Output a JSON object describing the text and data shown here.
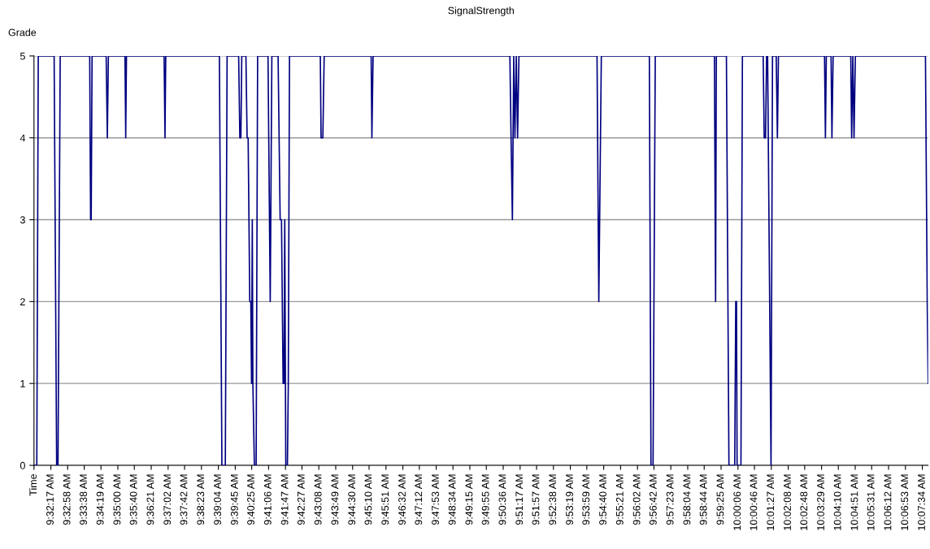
{
  "chart_data": {
    "type": "line",
    "title": "SignalStrength",
    "ylabel": "Grade",
    "x": [
      9.5267,
      9.5286,
      9.5296,
      9.5403,
      9.542,
      9.5429,
      9.5444,
      9.5643,
      9.5649,
      9.5653,
      9.5659,
      9.5754,
      9.5762,
      9.5769,
      9.5881,
      9.5886,
      9.5891,
      9.6145,
      9.6151,
      9.6156,
      9.6518,
      9.6535,
      9.6558,
      9.657,
      9.6648,
      9.6656,
      9.6663,
      9.6669,
      9.6697,
      9.6705,
      9.6712,
      9.6723,
      9.673,
      9.6735,
      9.674,
      9.6744,
      9.6754,
      9.6766,
      9.6776,
      9.6846,
      9.6861,
      9.6872,
      9.6914,
      9.6928,
      9.6937,
      9.6948,
      9.6954,
      9.6959,
      9.6966,
      9.6977,
      9.6983,
      9.6991,
      9.7199,
      9.7204,
      9.7216,
      9.7225,
      9.7542,
      9.7547,
      9.7555,
      9.8478,
      9.8486,
      9.8495,
      9.8504,
      9.8512,
      9.8521,
      9.853,
      9.8539,
      9.9066,
      9.9078,
      9.9095,
      9.9419,
      9.943,
      9.9444,
      9.9459,
      9.9858,
      9.9866,
      9.9871,
      9.9939,
      9.9956,
      9.9995,
      10.0002,
      10.0007,
      10.0011,
      10.0037,
      10.0047,
      10.0187,
      10.0194,
      10.0203,
      10.021,
      10.0217,
      10.024,
      10.025,
      10.0275,
      10.0283,
      10.029,
      10.0601,
      10.0607,
      10.0613,
      10.0645,
      10.0651,
      10.0659,
      10.0778,
      10.0784,
      10.0792,
      10.08,
      10.0809,
      10.1282,
      10.1294,
      10.13
    ],
    "series": [
      {
        "color": "#000080",
        "values": [
          0,
          0,
          5,
          5,
          0,
          0,
          5,
          5,
          3,
          3,
          5,
          5,
          4,
          5,
          5,
          4,
          5,
          5,
          4,
          5,
          5,
          0,
          0,
          5,
          5,
          4,
          4,
          5,
          5,
          4,
          4,
          2,
          2,
          1,
          3,
          1,
          0,
          0,
          5,
          5,
          2,
          5,
          5,
          3,
          3,
          1,
          1,
          3,
          0,
          0,
          1,
          5,
          5,
          4,
          4,
          5,
          5,
          4,
          5,
          5,
          4,
          3,
          5,
          4,
          5,
          4,
          5,
          5,
          2,
          5,
          5,
          0,
          0,
          5,
          5,
          2,
          5,
          5,
          0,
          0,
          2,
          2,
          0,
          0,
          5,
          5,
          4,
          4,
          5,
          5,
          0,
          5,
          5,
          4,
          5,
          5,
          4,
          5,
          5,
          4,
          5,
          5,
          4,
          5,
          4,
          5,
          5,
          2,
          1
        ]
      }
    ],
    "xlim": [
      9.5267,
      10.13
    ],
    "xticks": [
      {
        "value": 9.5267,
        "label": "Time"
      },
      {
        "value": 9.5381,
        "label": "9:32:17 AM"
      },
      {
        "value": 9.5494,
        "label": "9:32:58 AM"
      },
      {
        "value": 9.5606,
        "label": "9:33:38 AM"
      },
      {
        "value": 9.5719,
        "label": "9:34:19 AM"
      },
      {
        "value": 9.5833,
        "label": "9:35:00 AM"
      },
      {
        "value": 9.5944,
        "label": "9:35:40 AM"
      },
      {
        "value": 9.6058,
        "label": "9:36:21 AM"
      },
      {
        "value": 9.6172,
        "label": "9:37:02 AM"
      },
      {
        "value": 9.6283,
        "label": "9:37:42 AM"
      },
      {
        "value": 9.6397,
        "label": "9:38:23 AM"
      },
      {
        "value": 9.6511,
        "label": "9:39:04 AM"
      },
      {
        "value": 9.6625,
        "label": "9:39:45 AM"
      },
      {
        "value": 9.6736,
        "label": "9:40:25 AM"
      },
      {
        "value": 9.685,
        "label": "9:41:06 AM"
      },
      {
        "value": 9.6964,
        "label": "9:41:47 AM"
      },
      {
        "value": 9.7075,
        "label": "9:42:27 AM"
      },
      {
        "value": 9.7189,
        "label": "9:43:08 AM"
      },
      {
        "value": 9.7303,
        "label": "9:43:49 AM"
      },
      {
        "value": 9.7417,
        "label": "9:44:30 AM"
      },
      {
        "value": 9.7528,
        "label": "9:45:10 AM"
      },
      {
        "value": 9.7642,
        "label": "9:45:51 AM"
      },
      {
        "value": 9.7756,
        "label": "9:46:32 AM"
      },
      {
        "value": 9.7867,
        "label": "9:47:12 AM"
      },
      {
        "value": 9.7981,
        "label": "9:47:53 AM"
      },
      {
        "value": 9.8094,
        "label": "9:48:34 AM"
      },
      {
        "value": 9.8208,
        "label": "9:49:15 AM"
      },
      {
        "value": 9.8319,
        "label": "9:49:55 AM"
      },
      {
        "value": 9.8433,
        "label": "9:50:36 AM"
      },
      {
        "value": 9.8547,
        "label": "9:51:17 AM"
      },
      {
        "value": 9.8658,
        "label": "9:51:57 AM"
      },
      {
        "value": 9.8772,
        "label": "9:52:38 AM"
      },
      {
        "value": 9.8886,
        "label": "9:53:19 AM"
      },
      {
        "value": 9.8997,
        "label": "9:53:59 AM"
      },
      {
        "value": 9.9111,
        "label": "9:54:40 AM"
      },
      {
        "value": 9.9225,
        "label": "9:55:21 AM"
      },
      {
        "value": 9.9339,
        "label": "9:56:02 AM"
      },
      {
        "value": 9.945,
        "label": "9:56:42 AM"
      },
      {
        "value": 9.9564,
        "label": "9:57:23 AM"
      },
      {
        "value": 9.9678,
        "label": "9:58:04 AM"
      },
      {
        "value": 9.9789,
        "label": "9:58:44 AM"
      },
      {
        "value": 9.9903,
        "label": "9:59:25 AM"
      },
      {
        "value": 10.0017,
        "label": "10:00:06 AM"
      },
      {
        "value": 10.0128,
        "label": "10:00:46 AM"
      },
      {
        "value": 10.0242,
        "label": "10:01:27 AM"
      },
      {
        "value": 10.0356,
        "label": "10:02:08 AM"
      },
      {
        "value": 10.0467,
        "label": "10:02:48 AM"
      },
      {
        "value": 10.0581,
        "label": "10:03:29 AM"
      },
      {
        "value": 10.0694,
        "label": "10:04:10 AM"
      },
      {
        "value": 10.0808,
        "label": "10:04:51 AM"
      },
      {
        "value": 10.0919,
        "label": "10:05:31 AM"
      },
      {
        "value": 10.1033,
        "label": "10:06:12 AM"
      },
      {
        "value": 10.1147,
        "label": "10:06:53 AM"
      },
      {
        "value": 10.1261,
        "label": "10:07:34 AM"
      }
    ],
    "ylim": [
      0,
      5
    ],
    "yticks": [
      0,
      1,
      2,
      3,
      4,
      5
    ],
    "grid": "y",
    "marker": "none",
    "line_style": "solid"
  }
}
